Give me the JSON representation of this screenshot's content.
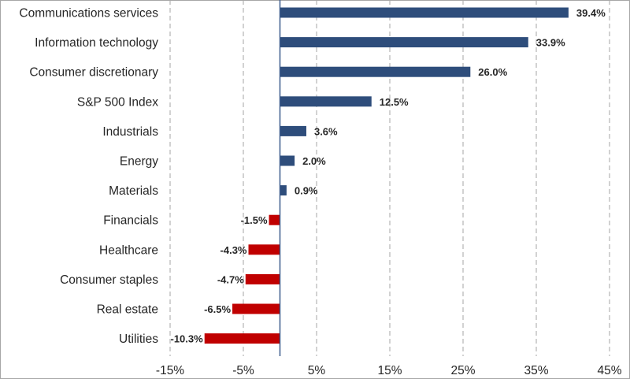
{
  "chart_data": {
    "type": "bar",
    "orientation": "horizontal",
    "title": "",
    "xlabel": "",
    "ylabel": "",
    "xlim": [
      -15,
      45
    ],
    "ticks": [
      -15,
      -5,
      5,
      15,
      25,
      35,
      45
    ],
    "tick_labels": [
      "-15%",
      "-5%",
      "5%",
      "15%",
      "25%",
      "35%",
      "45%"
    ],
    "grid": "vertical dashed",
    "categories": [
      "Communications services",
      "Information technology",
      "Consumer discretionary",
      "S&P 500 Index",
      "Industrials",
      "Energy",
      "Materials",
      "Financials",
      "Healthcare",
      "Consumer staples",
      "Real estate",
      "Utilities"
    ],
    "values": [
      39.4,
      33.9,
      26.0,
      12.5,
      3.6,
      2.0,
      0.9,
      -1.5,
      -4.3,
      -4.7,
      -6.5,
      -10.3
    ],
    "value_labels": [
      "39.4%",
      "33.9%",
      "26.0%",
      "12.5%",
      "3.6%",
      "2.0%",
      "0.9%",
      "-1.5%",
      "-4.3%",
      "-4.7%",
      "-6.5%",
      "-10.3%"
    ],
    "colors": {
      "positive": "#2e4d7b",
      "negative": "#c00000",
      "grid": "#a6a6a6",
      "axis": "#3b5a8c"
    }
  }
}
